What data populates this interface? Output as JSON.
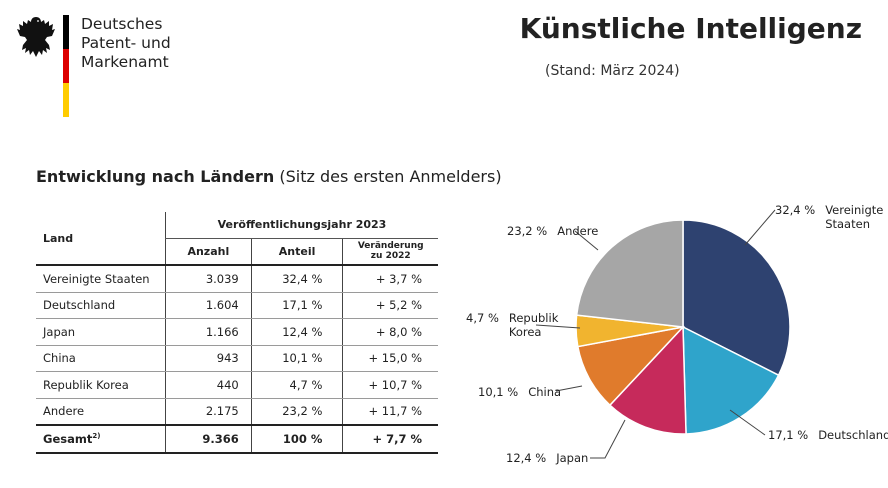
{
  "header": {
    "org_line1": "Deutsches",
    "org_line2": "Patent- und Markenamt",
    "title": "Künstliche Intelligenz",
    "status": "(Stand: März 2024)",
    "flag_colors": [
      "#000000",
      "#dd0000",
      "#ffcc00"
    ]
  },
  "section": {
    "heading_bold": "Entwicklung nach Ländern",
    "heading_normal": "(Sitz des ersten Anmelders)"
  },
  "table": {
    "col_land": "Land",
    "col_group": "Veröffentlichungsjahr 2023",
    "col_anzahl": "Anzahl",
    "col_anteil": "Anteil",
    "col_change_1": "Veränderung",
    "col_change_2": "zu 2022",
    "rows": [
      {
        "land": "Vereinigte Staaten",
        "anzahl": "3.039",
        "anteil": "32,4 %",
        "change": "+ 3,7 %"
      },
      {
        "land": "Deutschland",
        "anzahl": "1.604",
        "anteil": "17,1 %",
        "change": "+ 5,2 %"
      },
      {
        "land": "Japan",
        "anzahl": "1.166",
        "anteil": "12,4 %",
        "change": "+ 8,0 %"
      },
      {
        "land": "China",
        "anzahl": "943",
        "anteil": "10,1 %",
        "change": "+ 15,0 %"
      },
      {
        "land": "Republik Korea",
        "anzahl": "440",
        "anteil": "4,7 %",
        "change": "+ 10,7 %"
      },
      {
        "land": "Andere",
        "anzahl": "2.175",
        "anteil": "23,2 %",
        "change": "+ 11,7 %"
      }
    ],
    "total": {
      "land": "Gesamt",
      "footnote": "2)",
      "anzahl": "9.366",
      "anteil": "100 %",
      "change": "+ 7,7 %"
    }
  },
  "chart_data": {
    "type": "pie",
    "start_angle_deg": 0,
    "direction": "clockwise",
    "slices": [
      {
        "label": "Vereinigte Staaten",
        "label_lines": [
          "Vereinigte",
          "Staaten"
        ],
        "pct_text": "32,4 %",
        "value": 32.4,
        "color": "#2e4270"
      },
      {
        "label": "Deutschland",
        "label_lines": [
          "Deutschland"
        ],
        "pct_text": "17,1 %",
        "value": 17.1,
        "color": "#2fa4cb"
      },
      {
        "label": "Japan",
        "label_lines": [
          "Japan"
        ],
        "pct_text": "12,4 %",
        "value": 12.4,
        "color": "#c62a5b"
      },
      {
        "label": "China",
        "label_lines": [
          "China"
        ],
        "pct_text": "10,1 %",
        "value": 10.1,
        "color": "#e07b2c"
      },
      {
        "label": "Republik Korea",
        "label_lines": [
          "Republik",
          "Korea"
        ],
        "pct_text": "4,7 %",
        "value": 4.7,
        "color": "#f1b42f"
      },
      {
        "label": "Andere",
        "label_lines": [
          "Andere"
        ],
        "pct_text": "23,2 %",
        "value": 23.2,
        "color": "#a6a6a6"
      }
    ]
  }
}
